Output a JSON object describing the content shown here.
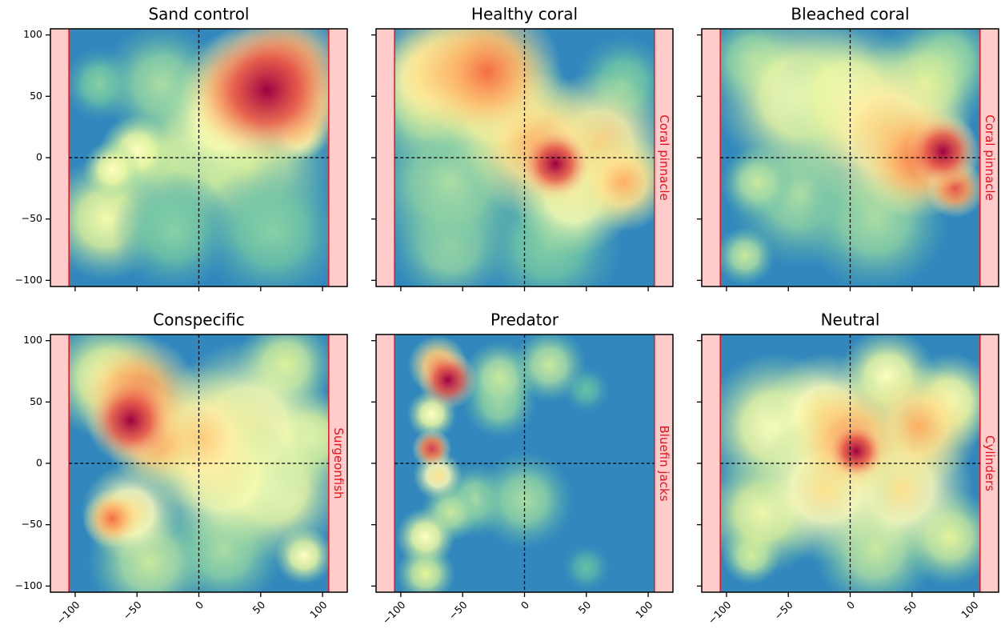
{
  "chart_data": [
    {
      "type": "heatmap",
      "title": "Sand control",
      "colormap": "Spectral_r",
      "xlim": [
        -120,
        120
      ],
      "ylim": [
        -105,
        105
      ],
      "walls": [
        -105,
        105
      ],
      "xticks": [
        -100,
        -50,
        0,
        50,
        100
      ],
      "yticks": [
        {
          "value": -100,
          "label": "−100"
        },
        {
          "value": -50,
          "label": "−50"
        },
        0,
        50,
        100
      ],
      "hotspots": {
        "x": [
          -30,
          0,
          40,
          -75,
          -20,
          60,
          -80,
          -30,
          -50,
          -70,
          20,
          80,
          80,
          35,
          70,
          55
        ],
        "y": [
          -20,
          10,
          -10,
          -50,
          -60,
          -60,
          60,
          60,
          5,
          -10,
          30,
          20,
          40,
          55,
          70,
          55
        ],
        "values": [
          0.35,
          0.45,
          0.4,
          0.45,
          0.25,
          0.25,
          0.25,
          0.3,
          0.5,
          0.5,
          0.55,
          0.6,
          0.75,
          0.8,
          0.85,
          1.0
        ],
        "sizes": [
          30,
          30,
          35,
          25,
          25,
          30,
          15,
          25,
          15,
          12,
          25,
          12,
          20,
          25,
          25,
          30
        ]
      }
    },
    {
      "type": "heatmap",
      "title": "Healthy coral",
      "colormap": "Spectral_r",
      "band_label": "Coral pinnacle",
      "xlim": [
        -120,
        120
      ],
      "ylim": [
        -105,
        105
      ],
      "walls": [
        -105,
        105
      ],
      "xticks": [
        -100,
        -50,
        0,
        50,
        100
      ],
      "yticks": [
        -100,
        -50,
        0,
        50,
        100
      ],
      "hotspots": {
        "x": [
          20,
          80,
          -60,
          -60,
          -80,
          -20,
          40,
          -80,
          60,
          80,
          10,
          -60,
          -30,
          25
        ],
        "y": [
          -70,
          60,
          -70,
          -20,
          40,
          40,
          -30,
          65,
          10,
          -20,
          10,
          70,
          70,
          -5
        ],
        "values": [
          0.25,
          0.25,
          0.3,
          0.3,
          0.35,
          0.5,
          0.55,
          0.6,
          0.65,
          0.7,
          0.7,
          0.7,
          0.8,
          1.0
        ],
        "sizes": [
          30,
          20,
          25,
          35,
          25,
          30,
          25,
          20,
          30,
          20,
          30,
          30,
          30,
          15
        ]
      }
    },
    {
      "type": "heatmap",
      "title": "Bleached coral",
      "colormap": "Spectral_r",
      "band_label": "Coral pinnacle",
      "xlim": [
        -120,
        120
      ],
      "ylim": [
        -105,
        105
      ],
      "walls": [
        -105,
        105
      ],
      "xticks": [
        -100,
        -50,
        0,
        50,
        100
      ],
      "yticks": [
        -100,
        -50,
        0,
        50,
        100
      ],
      "hotspots": {
        "x": [
          -40,
          20,
          80,
          -80,
          -75,
          -85,
          60,
          -40,
          0,
          30,
          55,
          85,
          75
        ],
        "y": [
          -30,
          -50,
          80,
          80,
          -20,
          -80,
          60,
          50,
          50,
          20,
          0,
          -25,
          5
        ],
        "values": [
          0.3,
          0.3,
          0.3,
          0.3,
          0.35,
          0.35,
          0.4,
          0.5,
          0.5,
          0.65,
          0.8,
          0.85,
          1.0
        ],
        "sizes": [
          30,
          30,
          20,
          20,
          15,
          12,
          25,
          35,
          30,
          35,
          25,
          12,
          15
        ]
      }
    },
    {
      "type": "heatmap",
      "title": "Conspecific",
      "colormap": "Spectral_r",
      "band_label": "Surgeonfish",
      "xlim": [
        -120,
        120
      ],
      "ylim": [
        -105,
        105
      ],
      "walls": [
        -105,
        105
      ],
      "xticks": [
        {
          "value": -100,
          "label": "−100"
        },
        {
          "value": -50,
          "label": "−50"
        },
        0,
        50,
        100
      ],
      "yticks": [
        {
          "value": -100,
          "label": "−100"
        },
        {
          "value": -50,
          "label": "−50"
        },
        0,
        50,
        100
      ],
      "hotspots": {
        "x": [
          20,
          -40,
          70,
          -75,
          90,
          85,
          60,
          40,
          20,
          -55,
          0,
          -35,
          -50,
          -70,
          -55
        ],
        "y": [
          -70,
          -80,
          80,
          70,
          20,
          -75,
          -20,
          30,
          -10,
          -40,
          20,
          20,
          55,
          -45,
          35
        ],
        "values": [
          0.3,
          0.35,
          0.4,
          0.45,
          0.45,
          0.5,
          0.5,
          0.55,
          0.55,
          0.6,
          0.65,
          0.75,
          0.8,
          0.8,
          1.0
        ],
        "sizes": [
          25,
          25,
          20,
          25,
          20,
          12,
          30,
          35,
          30,
          20,
          30,
          20,
          25,
          12,
          18
        ]
      }
    },
    {
      "type": "heatmap",
      "title": "Predator",
      "colormap": "Spectral_r",
      "band_label": "Bluefin jacks",
      "xlim": [
        -120,
        120
      ],
      "ylim": [
        -105,
        105
      ],
      "walls": [
        -105,
        105
      ],
      "xticks": [
        {
          "value": -100,
          "label": "−100"
        },
        {
          "value": -50,
          "label": "−50"
        },
        0,
        50,
        100
      ],
      "yticks": [
        -100,
        -50,
        0,
        50,
        100
      ],
      "hotspots": {
        "x": [
          50,
          50,
          -20,
          -40,
          0,
          -20,
          20,
          -60,
          -80,
          -75,
          -80,
          -70,
          -70,
          -75,
          -62
        ],
        "y": [
          60,
          -85,
          50,
          -30,
          -30,
          70,
          80,
          -40,
          -90,
          40,
          -60,
          -10,
          80,
          12,
          68
        ],
        "values": [
          0.2,
          0.2,
          0.3,
          0.3,
          0.3,
          0.35,
          0.35,
          0.35,
          0.4,
          0.5,
          0.5,
          0.6,
          0.75,
          0.9,
          1.0
        ],
        "sizes": [
          10,
          10,
          15,
          15,
          20,
          15,
          15,
          12,
          12,
          10,
          12,
          10,
          12,
          8,
          12
        ]
      }
    },
    {
      "type": "heatmap",
      "title": "Neutral",
      "colormap": "Spectral_r",
      "band_label": "Cylinders",
      "xlim": [
        -120,
        120
      ],
      "ylim": [
        -105,
        105
      ],
      "walls": [
        -105,
        105
      ],
      "xticks": [
        {
          "value": -100,
          "label": "−100"
        },
        {
          "value": -50,
          "label": "−50"
        },
        0,
        50,
        100
      ],
      "yticks": [
        -100,
        -50,
        0,
        50,
        100
      ],
      "hotspots": {
        "x": [
          20,
          -80,
          80,
          -70,
          -60,
          80,
          30,
          -20,
          40,
          -20,
          55,
          0,
          5
        ],
        "y": [
          -70,
          -75,
          -60,
          -40,
          30,
          50,
          70,
          40,
          -20,
          -20,
          30,
          20,
          10
        ],
        "values": [
          0.35,
          0.4,
          0.4,
          0.45,
          0.5,
          0.5,
          0.5,
          0.6,
          0.6,
          0.6,
          0.7,
          0.75,
          1.0
        ],
        "sizes": [
          25,
          12,
          20,
          25,
          30,
          20,
          20,
          25,
          30,
          30,
          25,
          25,
          12
        ]
      }
    }
  ]
}
